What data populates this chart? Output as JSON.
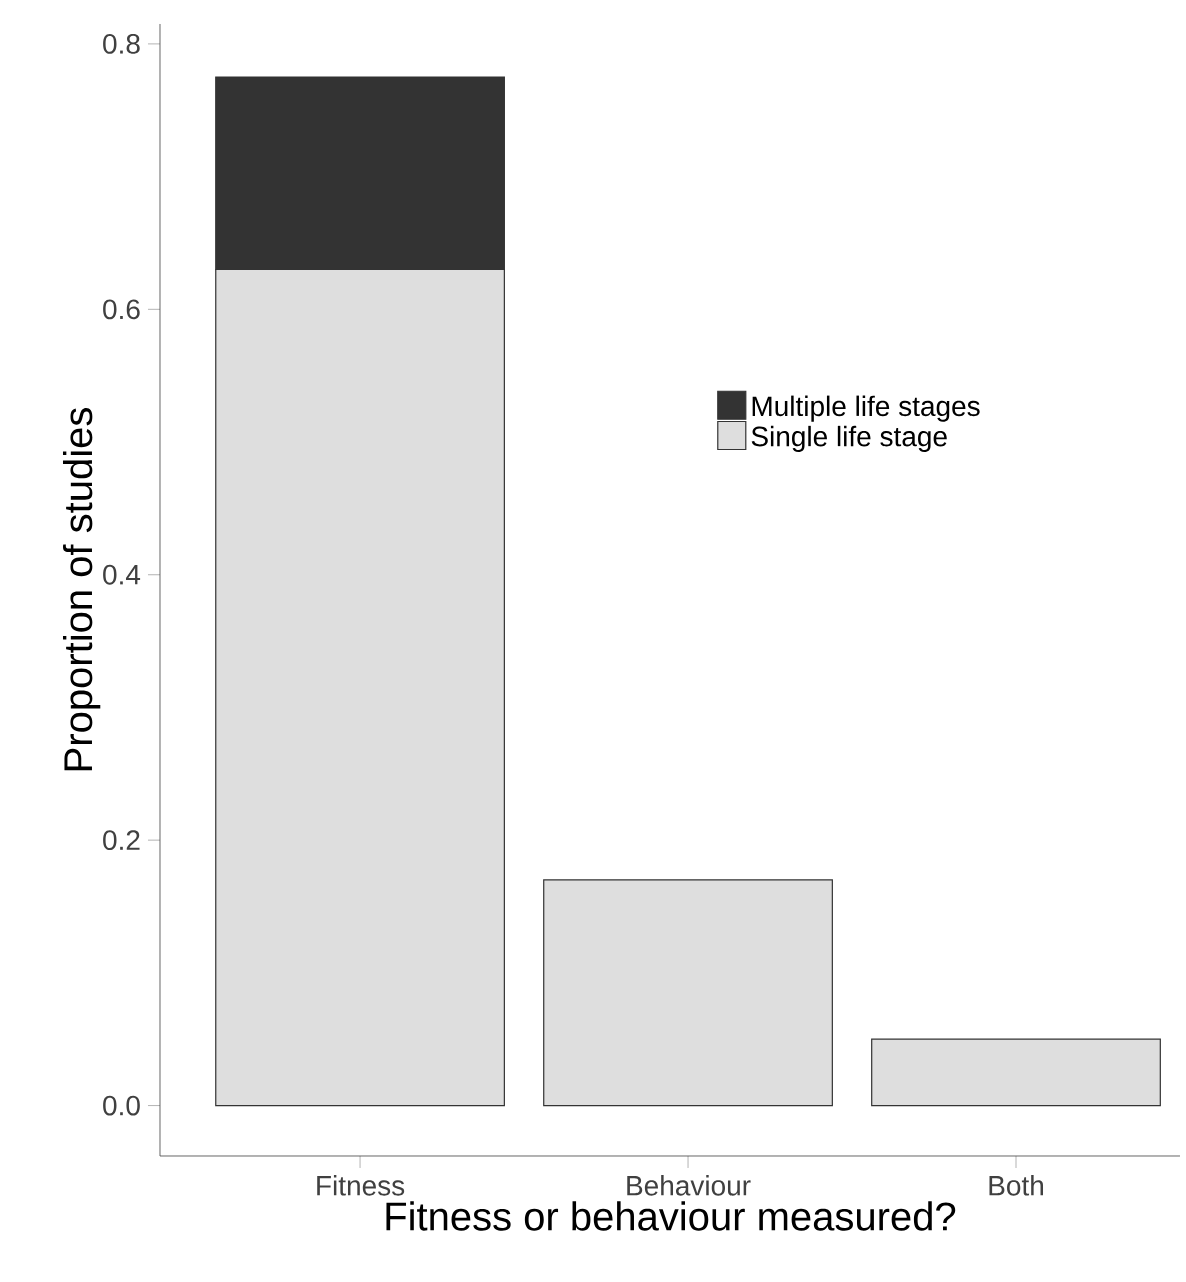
{
  "chart_data": {
    "type": "bar",
    "stacked": true,
    "xlabel": "Fitness or behaviour measured?",
    "ylabel": "Proportion of studies",
    "categories": [
      "Fitness",
      "Behaviour",
      "Both"
    ],
    "series": [
      {
        "name": "Single life stage",
        "color": "#dedede",
        "values": [
          0.63,
          0.17,
          0.05
        ]
      },
      {
        "name": "Multiple life stages",
        "color": "#333333",
        "values": [
          0.145,
          null,
          null
        ]
      }
    ],
    "ylim": [
      -0.038,
      0.815
    ],
    "yticks": [
      {
        "value": 0,
        "label": "0.0"
      },
      0.2,
      0.4,
      0.6,
      0.8
    ],
    "grid": false,
    "legend": "right"
  }
}
